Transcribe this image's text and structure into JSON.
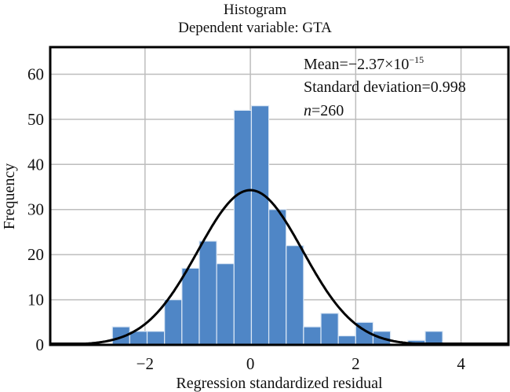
{
  "chart_data": {
    "type": "bar",
    "title": "Histogram",
    "subtitle": "Dependent variable: GTA",
    "xlabel": "Regression standardized residual",
    "ylabel": "Frequency",
    "xlim": [
      -3.8,
      4.9
    ],
    "ylim": [
      0,
      66
    ],
    "xticks": [
      -2,
      0,
      2,
      4
    ],
    "xtick_labels": [
      "−2",
      "0",
      "2",
      "4"
    ],
    "yticks": [
      0,
      10,
      20,
      30,
      40,
      50,
      60
    ],
    "ytick_labels": [
      "0",
      "10",
      "20",
      "30",
      "40",
      "50",
      "60"
    ],
    "grid": true,
    "bin_start": -2.62,
    "bin_width": 0.33,
    "values": [
      4,
      3,
      3,
      10,
      17,
      23,
      18,
      52,
      53,
      30,
      22,
      4,
      7,
      2,
      5,
      3,
      0,
      1,
      3
    ],
    "bar_color": "#4f86c6",
    "normal_curve": {
      "mean": 0,
      "sd": 0.998,
      "n": 260,
      "color": "#000000"
    },
    "annotations": {
      "mean_label": "Mean=−2.37×10",
      "mean_exponent": "−15",
      "sd_label": "Standard deviation=0.998",
      "n_italic": "n",
      "n_rest": "=260"
    }
  }
}
